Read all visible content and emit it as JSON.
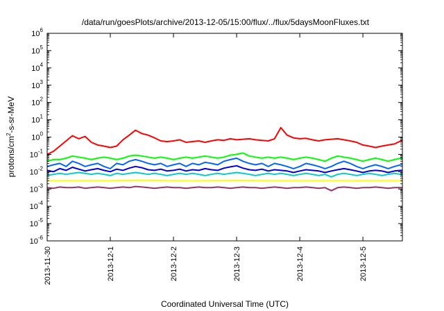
{
  "chart_data": {
    "type": "line",
    "title": "/data/run/goesPlots/archive/2013-12-05/15:00/flux/../flux/5daysMoonFluxes.txt",
    "xlabel": "Coordinated Universal Time (UTC)",
    "ylabel": {
      "base": "protons/cm",
      "sup": "2",
      "rest": "-s-sr-MeV"
    },
    "y_scale": "log",
    "ylim": [
      1e-06,
      1000000.0
    ],
    "y_ticks": [
      {
        "base": "10",
        "exp": "6"
      },
      {
        "base": "10",
        "exp": "5"
      },
      {
        "base": "10",
        "exp": "4"
      },
      {
        "base": "10",
        "exp": "3"
      },
      {
        "base": "10",
        "exp": "2"
      },
      {
        "base": "10",
        "exp": "1"
      },
      {
        "base": "10",
        "exp": "0"
      },
      {
        "base": "10",
        "exp": "-1"
      },
      {
        "base": "10",
        "exp": "-2"
      },
      {
        "base": "10",
        "exp": "-3"
      },
      {
        "base": "10",
        "exp": "-4"
      },
      {
        "base": "10",
        "exp": "-5"
      },
      {
        "base": "10",
        "exp": "-6"
      }
    ],
    "x_ticks": [
      "2013-11-30",
      "2013-12-1",
      "2013-12-2",
      "2013-12-3",
      "2013-12-4",
      "2013-12-5"
    ],
    "xlim": [
      "2013-11-30",
      "2013-12-05 15:00"
    ],
    "grid": false,
    "legend": "none",
    "series": [
      {
        "color": "#ff0000",
        "x": [
          0,
          0.1,
          0.2,
          0.3,
          0.4,
          0.5,
          0.6,
          0.7,
          0.8,
          0.9,
          1.0,
          1.1,
          1.2,
          1.3,
          1.4,
          1.5,
          1.6,
          1.7,
          1.8,
          1.9,
          2.0,
          2.1,
          2.2,
          2.3,
          2.4,
          2.5,
          2.6,
          2.7,
          2.8,
          2.9,
          3.0,
          3.1,
          3.2,
          3.3,
          3.4,
          3.5,
          3.6,
          3.7,
          3.8,
          3.9,
          4.0,
          4.1,
          4.2,
          4.3,
          4.4,
          4.5,
          4.6,
          4.7,
          4.8,
          4.9,
          5.0,
          5.1,
          5.2,
          5.3,
          5.4,
          5.5,
          5.6,
          5.625
        ],
        "y": [
          0.1,
          0.15,
          0.3,
          0.6,
          1.2,
          0.8,
          1.1,
          0.5,
          0.35,
          0.3,
          0.25,
          0.3,
          0.7,
          1.3,
          2.5,
          1.6,
          1.3,
          0.9,
          0.6,
          0.55,
          0.6,
          0.7,
          0.5,
          0.55,
          0.6,
          0.5,
          0.6,
          0.7,
          0.65,
          0.8,
          0.7,
          0.75,
          0.8,
          0.7,
          0.65,
          0.6,
          0.8,
          3.5,
          1.3,
          0.9,
          0.8,
          0.85,
          0.7,
          0.6,
          0.7,
          0.75,
          0.8,
          0.7,
          0.6,
          0.5,
          0.35,
          0.3,
          0.25,
          0.3,
          0.35,
          0.4,
          0.6,
          0.6
        ]
      },
      {
        "color": "#00ff00",
        "x": [
          0,
          0.1,
          0.2,
          0.3,
          0.4,
          0.5,
          0.6,
          0.7,
          0.8,
          0.9,
          1.0,
          1.1,
          1.2,
          1.3,
          1.4,
          1.5,
          1.6,
          1.7,
          1.8,
          1.9,
          2.0,
          2.1,
          2.2,
          2.3,
          2.4,
          2.5,
          2.6,
          2.7,
          2.8,
          2.9,
          3.0,
          3.1,
          3.2,
          3.3,
          3.4,
          3.5,
          3.6,
          3.7,
          3.8,
          3.9,
          4.0,
          4.1,
          4.2,
          4.3,
          4.4,
          4.5,
          4.6,
          4.7,
          4.8,
          4.9,
          5.0,
          5.1,
          5.2,
          5.3,
          5.4,
          5.5,
          5.6,
          5.625
        ],
        "y": [
          0.04,
          0.05,
          0.05,
          0.06,
          0.08,
          0.07,
          0.06,
          0.05,
          0.06,
          0.07,
          0.06,
          0.05,
          0.06,
          0.08,
          0.09,
          0.08,
          0.07,
          0.06,
          0.07,
          0.06,
          0.05,
          0.06,
          0.07,
          0.06,
          0.07,
          0.08,
          0.07,
          0.06,
          0.07,
          0.09,
          0.1,
          0.12,
          0.08,
          0.07,
          0.06,
          0.07,
          0.06,
          0.07,
          0.06,
          0.05,
          0.06,
          0.07,
          0.06,
          0.05,
          0.04,
          0.06,
          0.08,
          0.07,
          0.06,
          0.05,
          0.04,
          0.05,
          0.06,
          0.05,
          0.04,
          0.05,
          0.06,
          0.06
        ]
      },
      {
        "color": "#00cccc",
        "x": [
          0,
          0.1,
          0.2,
          0.3,
          0.4,
          0.5,
          0.6,
          0.7,
          0.8,
          0.9,
          1.0,
          1.1,
          1.2,
          1.3,
          1.4,
          1.5,
          1.6,
          1.7,
          1.8,
          1.9,
          2.0,
          2.1,
          2.2,
          2.3,
          2.4,
          2.5,
          2.6,
          2.7,
          2.8,
          2.9,
          3.0,
          3.1,
          3.2,
          3.3,
          3.4,
          3.5,
          3.6,
          3.7,
          3.8,
          3.9,
          4.0,
          4.1,
          4.2,
          4.3,
          4.4,
          4.5,
          4.6,
          4.7,
          4.8,
          4.9,
          5.0,
          5.1,
          5.2,
          5.3,
          5.4,
          5.5,
          5.6,
          5.625
        ],
        "y": [
          0.006,
          0.007,
          0.008,
          0.007,
          0.008,
          0.009,
          0.008,
          0.007,
          0.008,
          0.007,
          0.006,
          0.008,
          0.007,
          0.008,
          0.009,
          0.008,
          0.007,
          0.008,
          0.007,
          0.006,
          0.007,
          0.008,
          0.007,
          0.008,
          0.007,
          0.006,
          0.007,
          0.008,
          0.007,
          0.008,
          0.009,
          0.008,
          0.007,
          0.006,
          0.007,
          0.008,
          0.007,
          0.008,
          0.007,
          0.006,
          0.007,
          0.008,
          0.007,
          0.006,
          0.007,
          0.005,
          0.007,
          0.008,
          0.007,
          0.006,
          0.007,
          0.008,
          0.007,
          0.006,
          0.007,
          0.008,
          0.007,
          0.007
        ]
      },
      {
        "color": "#0066ff",
        "x": [
          0,
          0.1,
          0.2,
          0.3,
          0.4,
          0.5,
          0.6,
          0.7,
          0.8,
          0.9,
          1.0,
          1.1,
          1.2,
          1.3,
          1.4,
          1.5,
          1.6,
          1.7,
          1.8,
          1.9,
          2.0,
          2.1,
          2.2,
          2.3,
          2.4,
          2.5,
          2.6,
          2.7,
          2.8,
          2.9,
          3.0,
          3.1,
          3.2,
          3.3,
          3.4,
          3.5,
          3.6,
          3.7,
          3.8,
          3.9,
          4.0,
          4.1,
          4.2,
          4.3,
          4.4,
          4.5,
          4.6,
          4.7,
          4.8,
          4.9,
          5.0,
          5.1,
          5.2,
          5.3,
          5.4,
          5.5,
          5.6,
          5.625
        ],
        "y": [
          0.02,
          0.025,
          0.03,
          0.02,
          0.04,
          0.03,
          0.02,
          0.025,
          0.03,
          0.02,
          0.015,
          0.03,
          0.025,
          0.04,
          0.05,
          0.04,
          0.03,
          0.025,
          0.03,
          0.02,
          0.025,
          0.03,
          0.02,
          0.03,
          0.025,
          0.035,
          0.03,
          0.025,
          0.04,
          0.05,
          0.06,
          0.04,
          0.03,
          0.025,
          0.03,
          0.02,
          0.03,
          0.025,
          0.02,
          0.015,
          0.02,
          0.03,
          0.025,
          0.02,
          0.015,
          0.02,
          0.03,
          0.04,
          0.03,
          0.02,
          0.015,
          0.02,
          0.025,
          0.02,
          0.015,
          0.02,
          0.025,
          0.025
        ]
      },
      {
        "color": "#0000dd",
        "x": [
          0,
          0.1,
          0.2,
          0.3,
          0.4,
          0.5,
          0.6,
          0.7,
          0.8,
          0.9,
          1.0,
          1.1,
          1.2,
          1.3,
          1.4,
          1.5,
          1.6,
          1.7,
          1.8,
          1.9,
          2.0,
          2.1,
          2.2,
          2.3,
          2.4,
          2.5,
          2.6,
          2.7,
          2.8,
          2.9,
          3.0,
          3.1,
          3.2,
          3.3,
          3.4,
          3.5,
          3.6,
          3.7,
          3.8,
          3.9,
          4.0,
          4.1,
          4.2,
          4.3,
          4.4,
          4.5,
          4.6,
          4.7,
          4.8,
          4.9,
          5.0,
          5.1,
          5.2,
          5.3,
          5.4,
          5.5,
          5.6,
          5.625
        ],
        "y": [
          0.012,
          0.01,
          0.015,
          0.012,
          0.018,
          0.014,
          0.011,
          0.013,
          0.015,
          0.012,
          0.01,
          0.014,
          0.012,
          0.016,
          0.02,
          0.017,
          0.013,
          0.012,
          0.014,
          0.011,
          0.012,
          0.014,
          0.011,
          0.013,
          0.012,
          0.015,
          0.013,
          0.012,
          0.016,
          0.019,
          0.022,
          0.016,
          0.013,
          0.012,
          0.014,
          0.011,
          0.013,
          0.012,
          0.011,
          0.009,
          0.011,
          0.013,
          0.012,
          0.011,
          0.009,
          0.011,
          0.013,
          0.015,
          0.013,
          0.011,
          0.009,
          0.011,
          0.012,
          0.011,
          0.009,
          0.011,
          0.012,
          0.012
        ]
      },
      {
        "color": "#ffff00",
        "x": [
          0,
          0.5,
          1.0,
          1.5,
          2.0,
          2.5,
          3.0,
          3.5,
          4.0,
          4.5,
          5.0,
          5.625
        ],
        "y": [
          0.003,
          0.003,
          0.003,
          0.0032,
          0.003,
          0.003,
          0.0031,
          0.003,
          0.003,
          0.003,
          0.003,
          0.003
        ]
      },
      {
        "color": "#993366",
        "x": [
          0,
          0.1,
          0.2,
          0.3,
          0.4,
          0.5,
          0.6,
          0.7,
          0.8,
          0.9,
          1.0,
          1.1,
          1.2,
          1.3,
          1.4,
          1.5,
          1.6,
          1.7,
          1.8,
          1.9,
          2.0,
          2.1,
          2.2,
          2.3,
          2.4,
          2.5,
          2.6,
          2.7,
          2.8,
          2.9,
          3.0,
          3.1,
          3.2,
          3.3,
          3.4,
          3.5,
          3.6,
          3.7,
          3.8,
          3.9,
          4.0,
          4.1,
          4.2,
          4.3,
          4.4,
          4.5,
          4.6,
          4.7,
          4.8,
          4.9,
          5.0,
          5.1,
          5.2,
          5.3,
          5.4,
          5.5,
          5.6,
          5.625
        ],
        "y": [
          0.0012,
          0.0011,
          0.0013,
          0.0012,
          0.0012,
          0.0013,
          0.0011,
          0.0012,
          0.0013,
          0.0012,
          0.0011,
          0.0012,
          0.0013,
          0.0012,
          0.0014,
          0.0013,
          0.0012,
          0.0011,
          0.0012,
          0.0013,
          0.0012,
          0.0012,
          0.0011,
          0.0012,
          0.0013,
          0.0012,
          0.0012,
          0.0013,
          0.0012,
          0.0011,
          0.0012,
          0.0013,
          0.0012,
          0.0012,
          0.0011,
          0.0012,
          0.0013,
          0.0012,
          0.0011,
          0.0012,
          0.0012,
          0.0013,
          0.0012,
          0.0011,
          0.0012,
          0.0008,
          0.0012,
          0.0013,
          0.0012,
          0.0011,
          0.0012,
          0.0012,
          0.0013,
          0.0012,
          0.0011,
          0.0012,
          0.0012,
          0.0012
        ]
      }
    ]
  }
}
